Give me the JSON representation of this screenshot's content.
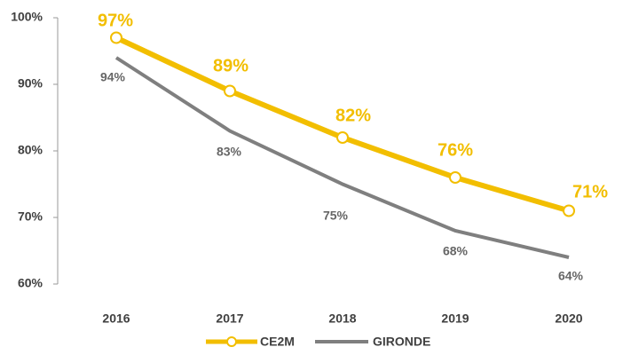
{
  "chart_data": {
    "type": "line",
    "categories": [
      "2016",
      "2017",
      "2018",
      "2019",
      "2020"
    ],
    "series": [
      {
        "name": "CE2M",
        "color": "#f2be00",
        "values": [
          97,
          89,
          82,
          76,
          71
        ],
        "value_labels": [
          "97%",
          "89%",
          "82%",
          "76%",
          "71%"
        ],
        "markers": true
      },
      {
        "name": "GIRONDE",
        "color": "#7f7f7f",
        "values": [
          94,
          83,
          75,
          68,
          64
        ],
        "value_labels": [
          "94%",
          "83%",
          "75%",
          "68%",
          "64%"
        ],
        "markers": false
      }
    ],
    "ylim": [
      60,
      100
    ],
    "yticks": [
      {
        "value": 60,
        "label": "60%"
      },
      {
        "value": 70,
        "label": "70%"
      },
      {
        "value": 80,
        "label": "80%"
      },
      {
        "value": 90,
        "label": "90%"
      },
      {
        "value": 100,
        "label": "100%"
      }
    ],
    "legend": "bottom"
  }
}
